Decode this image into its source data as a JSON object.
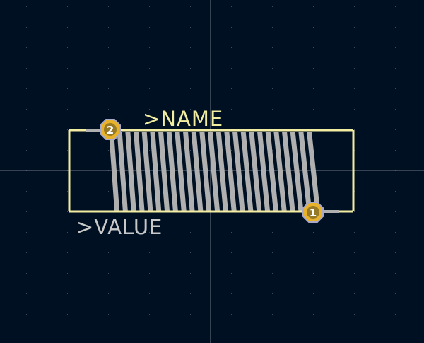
{
  "footprint": {
    "name_text": ">NAME",
    "value_text": ">VALUE",
    "pads": [
      {
        "number": "1"
      },
      {
        "number": "2"
      }
    ],
    "coil_turns": 25
  },
  "colors": {
    "background": "#001023",
    "grid_dot": "#3a4a66",
    "crosshair": "#6e7380",
    "silkscreen": "#f2eda1",
    "fab_text": "#c8c8c8",
    "copper_track": "#b0b0b0",
    "pad_fill": "#e8b22a",
    "pad_outline": "#a8a8c8",
    "pad_number": "#ffffff"
  }
}
